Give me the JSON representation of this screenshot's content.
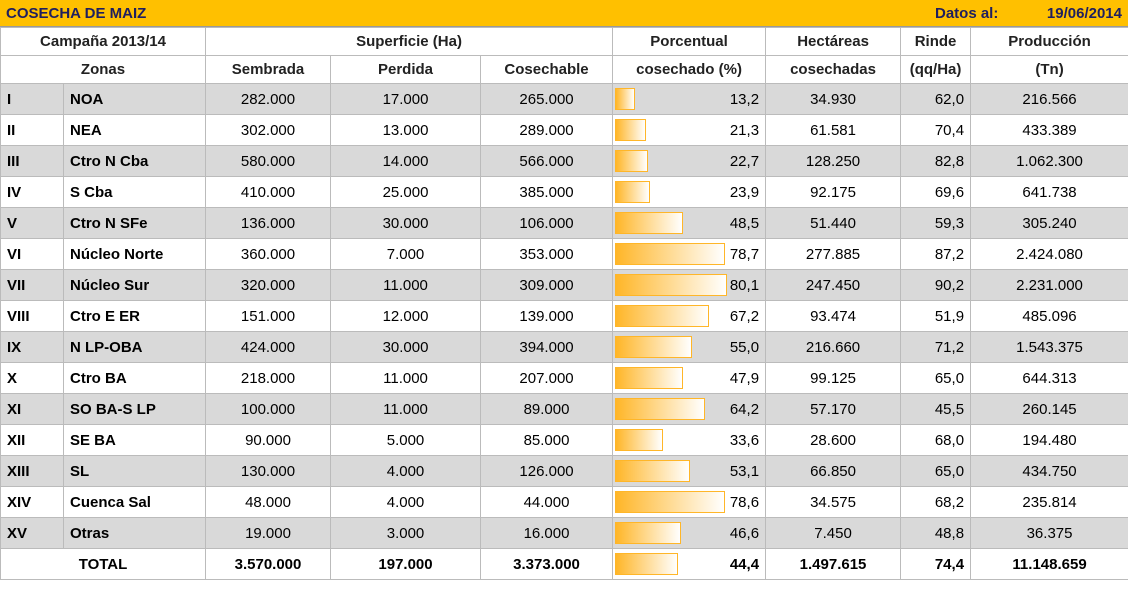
{
  "header": {
    "title": "COSECHA DE MAIZ",
    "date_label": "Datos al:",
    "date": "19/06/2014"
  },
  "table": {
    "head1": [
      "Campaña 2013/14",
      "Superficie (Ha)",
      "Porcentual",
      "Hectáreas",
      "Rinde",
      "Producción"
    ],
    "head2": [
      "Zonas",
      "Sembrada",
      "Perdida",
      "Cosechable",
      "cosechado (%)",
      "cosechadas",
      "(qq/Ha)",
      "(Tn)"
    ],
    "rows": [
      [
        "I",
        "NOA",
        "282.000",
        "17.000",
        "265.000",
        "13,2",
        "34.930",
        "62,0",
        "216.566"
      ],
      [
        "II",
        "NEA",
        "302.000",
        "13.000",
        "289.000",
        "21,3",
        "61.581",
        "70,4",
        "433.389"
      ],
      [
        "III",
        "Ctro N Cba",
        "580.000",
        "14.000",
        "566.000",
        "22,7",
        "128.250",
        "82,8",
        "1.062.300"
      ],
      [
        "IV",
        "S Cba",
        "410.000",
        "25.000",
        "385.000",
        "23,9",
        "92.175",
        "69,6",
        "641.738"
      ],
      [
        "V",
        "Ctro N SFe",
        "136.000",
        "30.000",
        "106.000",
        "48,5",
        "51.440",
        "59,3",
        "305.240"
      ],
      [
        "VI",
        "Núcleo Norte",
        "360.000",
        "7.000",
        "353.000",
        "78,7",
        "277.885",
        "87,2",
        "2.424.080"
      ],
      [
        "VII",
        "Núcleo Sur",
        "320.000",
        "11.000",
        "309.000",
        "80,1",
        "247.450",
        "90,2",
        "2.231.000"
      ],
      [
        "VIII",
        "Ctro E ER",
        "151.000",
        "12.000",
        "139.000",
        "67,2",
        "93.474",
        "51,9",
        "485.096"
      ],
      [
        "IX",
        "N LP-OBA",
        "424.000",
        "30.000",
        "394.000",
        "55,0",
        "216.660",
        "71,2",
        "1.543.375"
      ],
      [
        "X",
        "Ctro BA",
        "218.000",
        "11.000",
        "207.000",
        "47,9",
        "99.125",
        "65,0",
        "644.313"
      ],
      [
        "XI",
        "SO BA-S LP",
        "100.000",
        "11.000",
        "89.000",
        "64,2",
        "57.170",
        "45,5",
        "260.145"
      ],
      [
        "XII",
        "SE BA",
        "90.000",
        "5.000",
        "85.000",
        "33,6",
        "28.600",
        "68,0",
        "194.480"
      ],
      [
        "XIII",
        "SL",
        "130.000",
        "4.000",
        "126.000",
        "53,1",
        "66.850",
        "65,0",
        "434.750"
      ],
      [
        "XIV",
        "Cuenca Sal",
        "48.000",
        "4.000",
        "44.000",
        "78,6",
        "34.575",
        "68,2",
        "235.814"
      ],
      [
        "XV",
        "Otras",
        "19.000",
        "3.000",
        "16.000",
        "46,6",
        "7.450",
        "48,8",
        "36.375"
      ]
    ],
    "total": [
      "TOTAL",
      "3.570.000",
      "197.000",
      "3.373.000",
      "44,4",
      "1.497.615",
      "74,4",
      "11.148.659"
    ]
  }
}
